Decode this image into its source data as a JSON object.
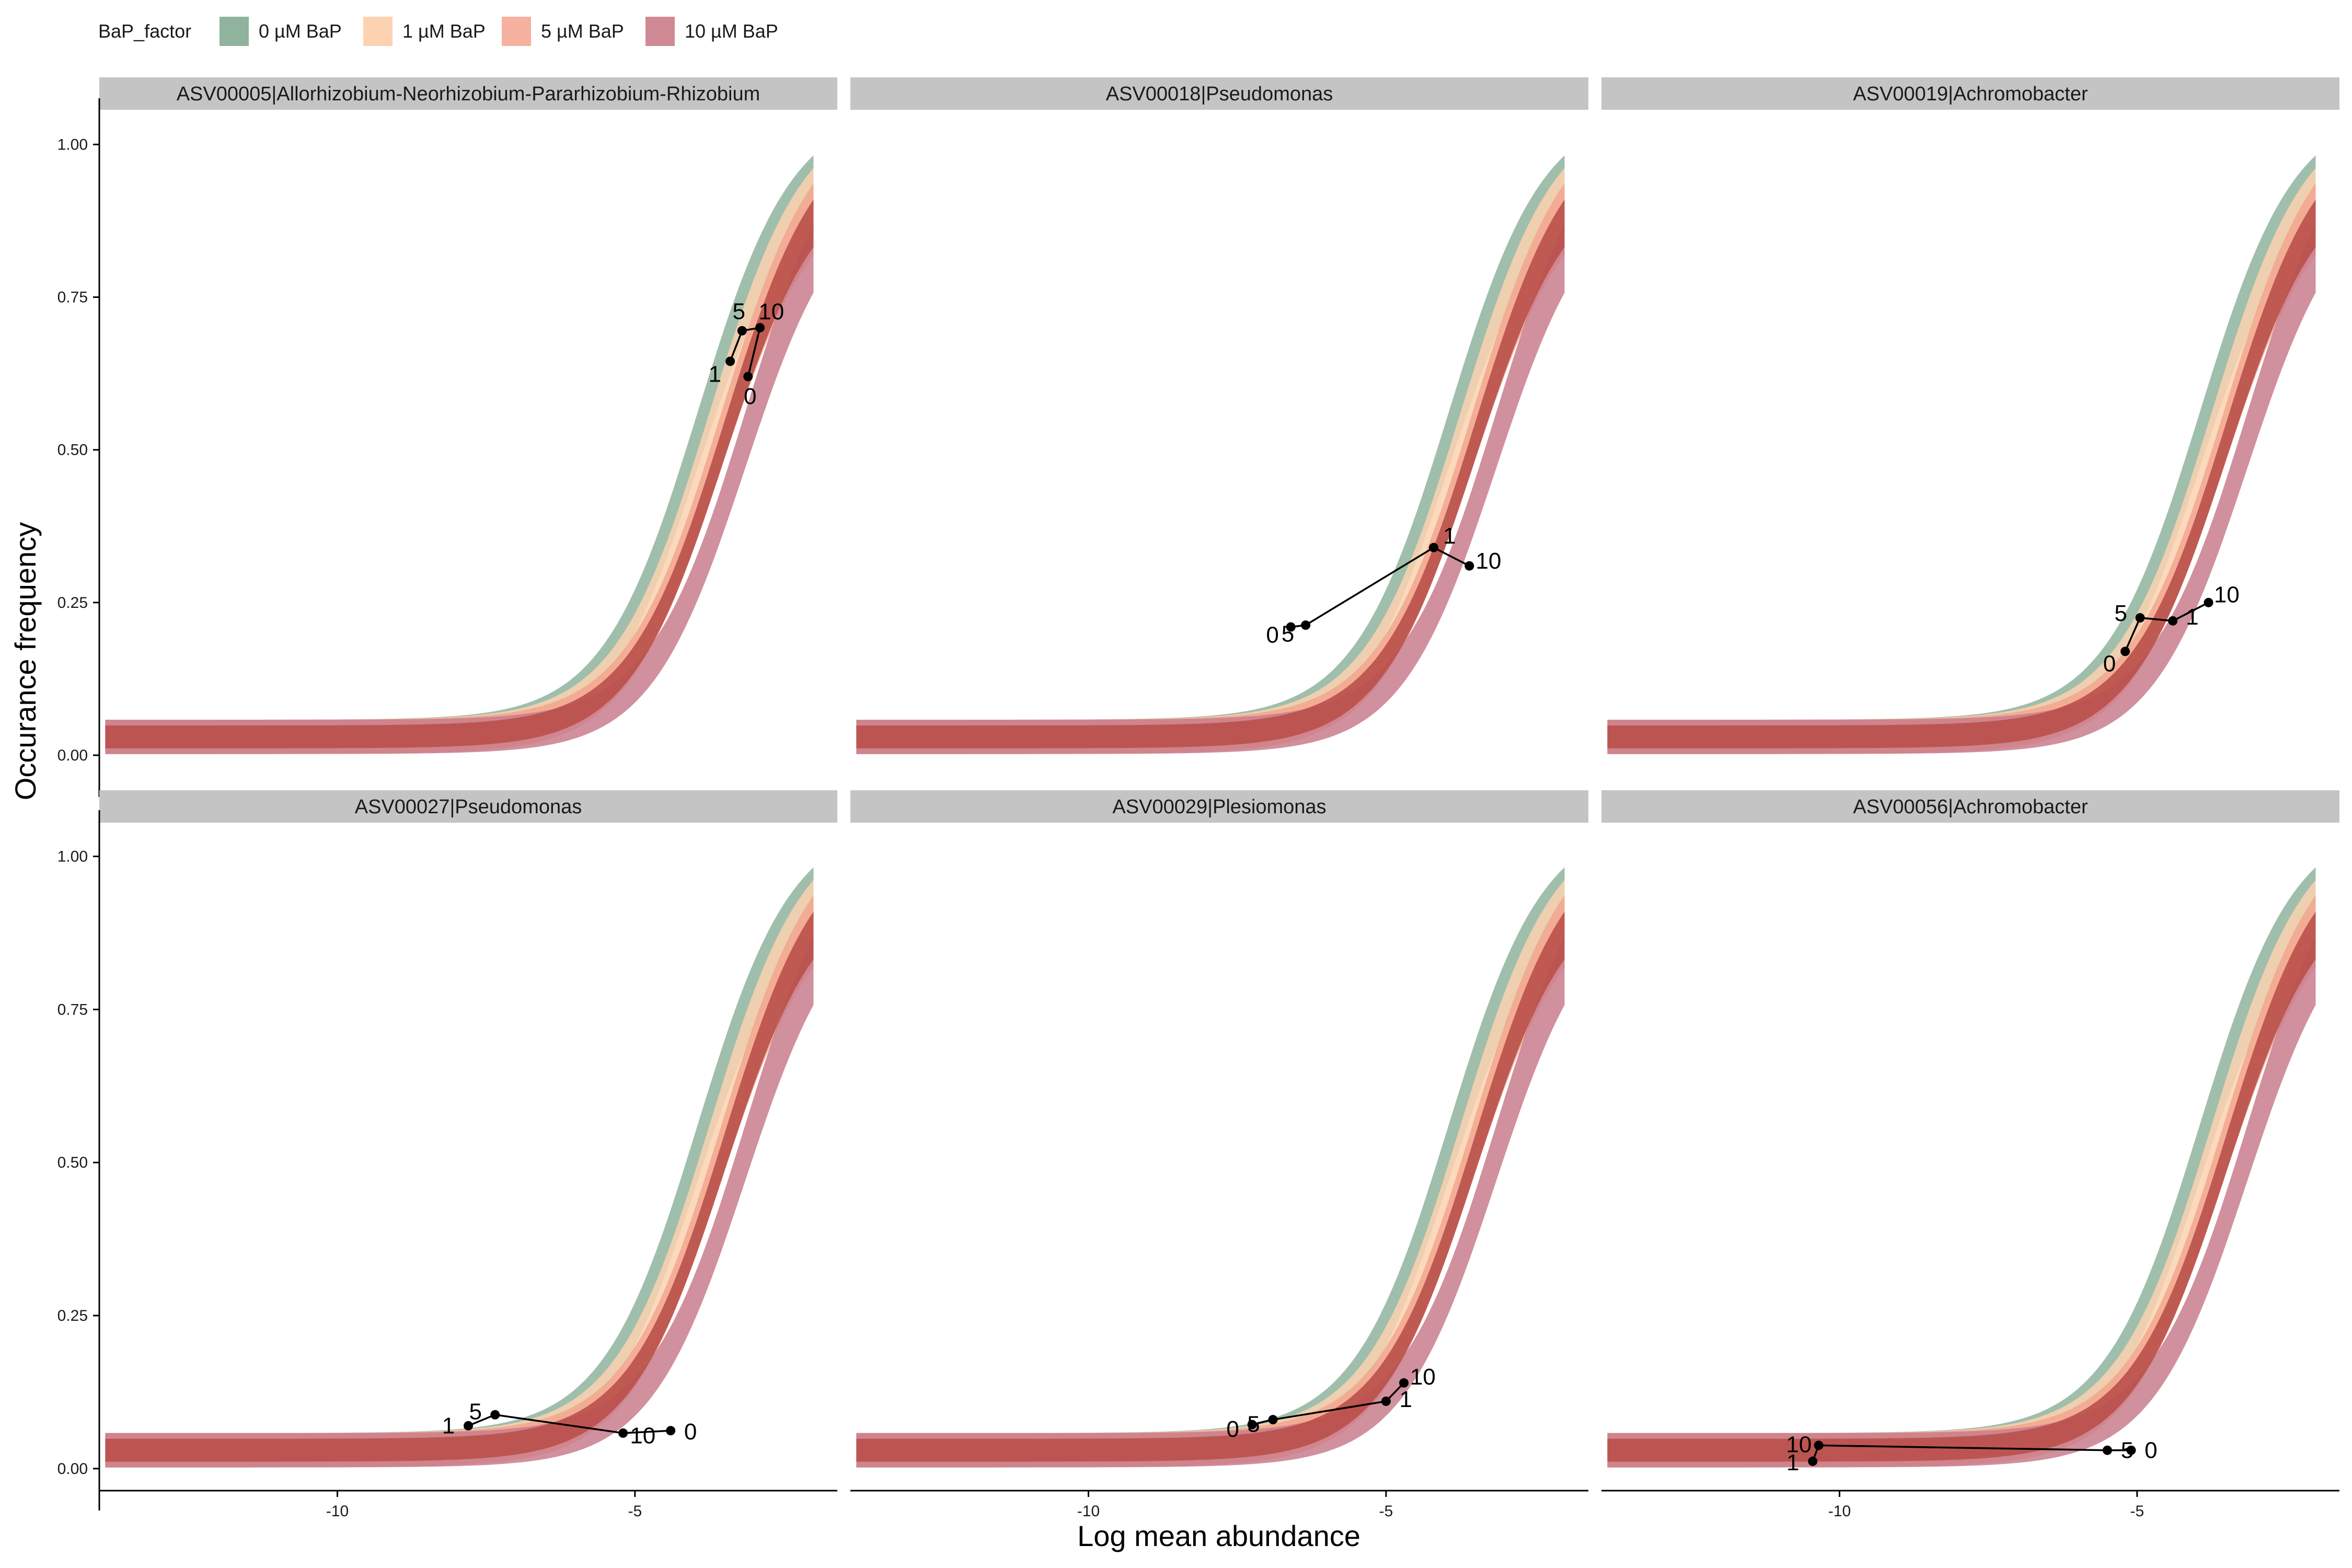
{
  "chart_data": {
    "type": "line",
    "xlabel": "Log mean abundance",
    "ylabel": "Occurance frequency",
    "xlim": [
      -14,
      -1.6
    ],
    "ylim": [
      -0.03,
      1.05
    ],
    "x_ticks": [
      -10,
      -5
    ],
    "x_tick_labels": [
      "-10",
      "-5"
    ],
    "y_ticks": [
      0,
      0.25,
      0.5,
      0.75,
      1
    ],
    "y_tick_labels": [
      "0.00",
      "0.25",
      "0.50",
      "0.75",
      "1.00"
    ],
    "legend": {
      "title": "BaP_factor",
      "position": "top-left",
      "entries": [
        {
          "label": "0 µM BaP",
          "color": "#8fb39d"
        },
        {
          "label": "1 µM BaP",
          "color": "#fcd2b0"
        },
        {
          "label": "5 µM BaP",
          "color": "#f6b1a0"
        },
        {
          "label": "10 µM BaP",
          "color": "#cf8a96"
        }
      ]
    },
    "model_bands": [
      {
        "name": "0 µM BaP",
        "color": "#8fb39d",
        "shift": 0.55
      },
      {
        "name": "1 µM BaP",
        "color": "#fcd2b0",
        "shift": 0.35
      },
      {
        "name": "5 µM BaP",
        "color": "#f2a68f",
        "shift": 0.15
      },
      {
        "name": "10 µM BaP",
        "color": "#c97d8c",
        "shift": -0.25
      },
      {
        "name": "overlap",
        "color": "#b9504a",
        "shift": 0.1
      }
    ],
    "panels": [
      {
        "title": "ASV00005|Allorhizobium-Neorhizobium-Pararhizobium-Rhizobium",
        "points": [
          {
            "label": "0",
            "x": -3.1,
            "y": 0.62
          },
          {
            "label": "1",
            "x": -3.4,
            "y": 0.645
          },
          {
            "label": "5",
            "x": -3.2,
            "y": 0.695
          },
          {
            "label": "10",
            "x": -2.9,
            "y": 0.7
          }
        ],
        "path_order": [
          "0",
          "10",
          "5",
          "1"
        ]
      },
      {
        "title": "ASV00018|Pseudomonas",
        "points": [
          {
            "label": "0",
            "x": -6.6,
            "y": 0.21
          },
          {
            "label": "5",
            "x": -6.35,
            "y": 0.213
          },
          {
            "label": "1",
            "x": -4.2,
            "y": 0.34
          },
          {
            "label": "10",
            "x": -3.6,
            "y": 0.31
          }
        ],
        "path_order": [
          "0",
          "5",
          "1",
          "10"
        ]
      },
      {
        "title": "ASV00019|Achromobacter",
        "points": [
          {
            "label": "0",
            "x": -5.2,
            "y": 0.17
          },
          {
            "label": "5",
            "x": -4.95,
            "y": 0.225
          },
          {
            "label": "1",
            "x": -4.4,
            "y": 0.22
          },
          {
            "label": "10",
            "x": -3.8,
            "y": 0.25
          }
        ],
        "path_order": [
          "0",
          "5",
          "1",
          "10"
        ]
      },
      {
        "title": "ASV00027|Pseudomonas",
        "points": [
          {
            "label": "1",
            "x": -7.8,
            "y": 0.07
          },
          {
            "label": "5",
            "x": -7.35,
            "y": 0.088
          },
          {
            "label": "10",
            "x": -5.2,
            "y": 0.058
          },
          {
            "label": "0",
            "x": -4.4,
            "y": 0.062
          }
        ],
        "path_order": [
          "1",
          "5",
          "10",
          "0"
        ]
      },
      {
        "title": "ASV00029|Plesiomonas",
        "points": [
          {
            "label": "0",
            "x": -7.25,
            "y": 0.072
          },
          {
            "label": "5",
            "x": -6.9,
            "y": 0.08
          },
          {
            "label": "1",
            "x": -5.0,
            "y": 0.11
          },
          {
            "label": "10",
            "x": -4.7,
            "y": 0.14
          }
        ],
        "path_order": [
          "0",
          "5",
          "1",
          "10"
        ]
      },
      {
        "title": "ASV00056|Achromobacter",
        "points": [
          {
            "label": "1",
            "x": -10.45,
            "y": 0.012
          },
          {
            "label": "10",
            "x": -10.35,
            "y": 0.038
          },
          {
            "label": "5",
            "x": -5.5,
            "y": 0.03
          },
          {
            "label": "0",
            "x": -5.1,
            "y": 0.03
          }
        ],
        "path_order": [
          "1",
          "10",
          "5",
          "0"
        ]
      }
    ]
  }
}
